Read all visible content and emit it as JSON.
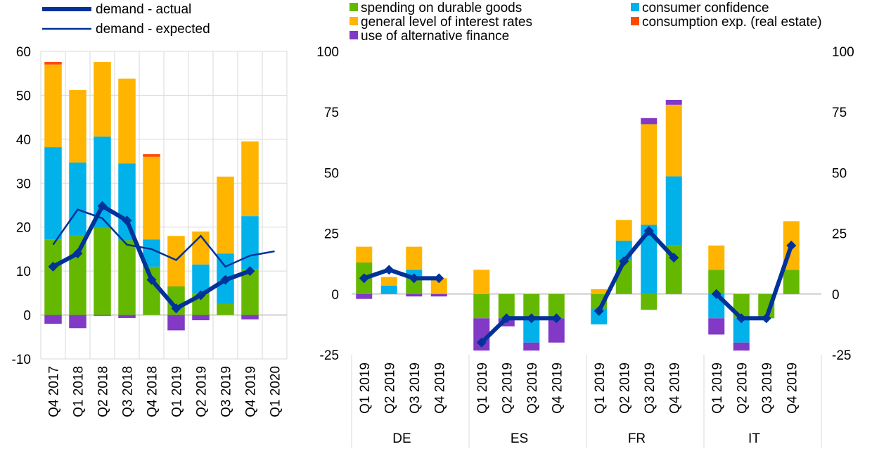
{
  "legend_left": [
    {
      "label": "demand - actual",
      "kind": "thick-line-marker"
    },
    {
      "label": "demand - expected",
      "kind": "thin-line"
    }
  ],
  "legend_right": [
    {
      "label": "spending on durable goods",
      "color": "#65B800"
    },
    {
      "label": "consumer confidence",
      "color": "#00B1EA"
    },
    {
      "label": "general level of interest rates",
      "color": "#FFB400"
    },
    {
      "label": "consumption exp. (real estate)",
      "color": "#FF4B00"
    },
    {
      "label": "use of alternative finance",
      "color": "#8139C6"
    }
  ],
  "colors": {
    "actual_line": "#003299",
    "expected_line": "#003299",
    "grid": "#d9d9d9",
    "axis": "#bfbfbf"
  },
  "chart_data": [
    {
      "type": "bar",
      "stacked": true,
      "ylim": [
        -10,
        60
      ],
      "yticks": [
        "-10",
        "0",
        "10",
        "20",
        "30",
        "40",
        "50",
        "60"
      ],
      "categories": [
        "Q4 2017",
        "Q1 2018",
        "Q2 2018",
        "Q3 2018",
        "Q4 2018",
        "Q1 2019",
        "Q2 2019",
        "Q3 2019",
        "Q4 2019",
        "Q1 2020"
      ],
      "series": [
        {
          "name": "spending on durable goods",
          "color": "#65B800",
          "values": [
            17.2,
            18.2,
            19.8,
            17.0,
            11.0,
            6.5,
            5.0,
            2.5,
            10.5,
            null
          ]
        },
        {
          "name": "consumer confidence",
          "color": "#00B1EA",
          "values": [
            21.0,
            16.5,
            20.8,
            17.5,
            6.2,
            0,
            6.5,
            11.5,
            12.0,
            null
          ]
        },
        {
          "name": "general level of interest rates",
          "color": "#FFB400",
          "values": [
            18.8,
            16.5,
            17.0,
            19.3,
            18.8,
            11.5,
            7.5,
            17.5,
            17.0,
            null
          ]
        },
        {
          "name": "consumption exp. (real estate)",
          "color": "#FF4B00",
          "values": [
            0.6,
            0,
            0,
            0,
            0.6,
            0,
            0,
            0,
            0,
            null
          ]
        },
        {
          "name": "use of alternative finance",
          "color": "#8139C6",
          "values": [
            -2.0,
            -3.0,
            -0.2,
            -0.7,
            0,
            -3.5,
            -1.2,
            0,
            -1.0,
            null
          ]
        }
      ],
      "lines": [
        {
          "name": "demand - actual",
          "values": [
            11.0,
            14.0,
            24.8,
            21.5,
            8.0,
            1.5,
            4.5,
            8.0,
            10.0,
            null
          ]
        },
        {
          "name": "demand - expected",
          "values": [
            16.0,
            24.0,
            22.0,
            16.0,
            15.0,
            12.5,
            18.0,
            11.0,
            13.5,
            14.5
          ]
        }
      ]
    },
    {
      "type": "bar",
      "stacked": true,
      "ylim": [
        -25,
        100
      ],
      "yticks": [
        "-25",
        "0",
        "25",
        "50",
        "75",
        "100"
      ],
      "groups": [
        "DE",
        "ES",
        "FR",
        "IT"
      ],
      "quarters": [
        "Q1 2019",
        "Q2 2019",
        "Q3 2019",
        "Q4 2019"
      ],
      "series_order": [
        "spending on durable goods",
        "consumer confidence",
        "general level of interest rates",
        "consumption exp. (real estate)",
        "use of alternative finance"
      ],
      "data": {
        "DE": [
          {
            "spending on durable goods": 13,
            "consumer confidence": 0,
            "general level of interest rates": 6.5,
            "consumption exp. (real estate)": 0,
            "use of alternative finance": -2,
            "actual": 6.5
          },
          {
            "spending on durable goods": 0,
            "consumer confidence": 3.5,
            "general level of interest rates": 3.5,
            "consumption exp. (real estate)": 0,
            "use of alternative finance": 0,
            "actual": 10
          },
          {
            "spending on durable goods": 6.5,
            "consumer confidence": 3.5,
            "general level of interest rates": 9.5,
            "consumption exp. (real estate)": 0,
            "use of alternative finance": -1,
            "actual": 6.5
          },
          {
            "spending on durable goods": 0,
            "consumer confidence": 0,
            "general level of interest rates": 6.5,
            "consumption exp. (real estate)": 0,
            "use of alternative finance": -1,
            "actual": 6.5
          }
        ],
        "ES": [
          {
            "spending on durable goods": -10,
            "consumer confidence": 0,
            "general level of interest rates": 10,
            "consumption exp. (real estate)": 0,
            "use of alternative finance": -13.3,
            "actual": -20
          },
          {
            "spending on durable goods": -10,
            "consumer confidence": 0,
            "general level of interest rates": 0,
            "consumption exp. (real estate)": 0,
            "use of alternative finance": -3.3,
            "actual": -10
          },
          {
            "spending on durable goods": -10,
            "consumer confidence": -10,
            "general level of interest rates": 0,
            "consumption exp. (real estate)": 0,
            "use of alternative finance": -3.3,
            "actual": -10
          },
          {
            "spending on durable goods": -10,
            "consumer confidence": 0,
            "general level of interest rates": 0,
            "consumption exp. (real estate)": 0,
            "use of alternative finance": -10,
            "actual": -10
          }
        ],
        "FR": [
          {
            "spending on durable goods": -6,
            "consumer confidence": -6.5,
            "general level of interest rates": 2,
            "consumption exp. (real estate)": 0,
            "use of alternative finance": 0,
            "actual": -7
          },
          {
            "spending on durable goods": 14,
            "consumer confidence": 8,
            "general level of interest rates": 8.5,
            "consumption exp. (real estate)": 0,
            "use of alternative finance": 0,
            "actual": 13.5
          },
          {
            "spending on durable goods": -6.5,
            "consumer confidence": 28.5,
            "general level of interest rates": 41.5,
            "consumption exp. (real estate)": 0,
            "use of alternative finance": 2.5,
            "actual": 26
          },
          {
            "spending on durable goods": 20,
            "consumer confidence": 28.5,
            "general level of interest rates": 29.5,
            "consumption exp. (real estate)": 0,
            "use of alternative finance": 2,
            "actual": 15
          }
        ],
        "IT": [
          {
            "spending on durable goods": 10,
            "consumer confidence": -10,
            "general level of interest rates": 10,
            "consumption exp. (real estate)": 0,
            "use of alternative finance": -6.7,
            "actual": 0
          },
          {
            "spending on durable goods": -10,
            "consumer confidence": -10,
            "general level of interest rates": 0,
            "consumption exp. (real estate)": 0,
            "use of alternative finance": -3.3,
            "actual": -10
          },
          {
            "spending on durable goods": -10,
            "consumer confidence": 0,
            "general level of interest rates": 0,
            "consumption exp. (real estate)": 0,
            "use of alternative finance": 0,
            "actual": -10
          },
          {
            "spending on durable goods": 10,
            "consumer confidence": 0,
            "general level of interest rates": 20,
            "consumption exp. (real estate)": 0,
            "use of alternative finance": 0,
            "actual": 20
          }
        ]
      }
    }
  ]
}
